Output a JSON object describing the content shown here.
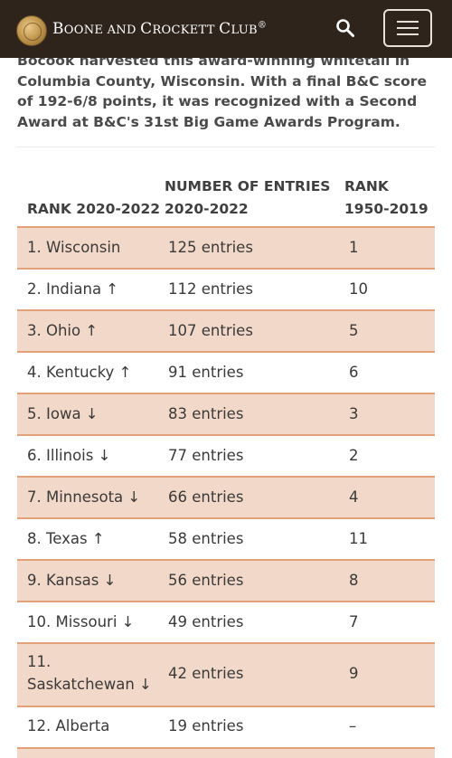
{
  "header": {
    "brand_first": "B",
    "brand_rest_1": "OONE AND ",
    "brand_c": "C",
    "brand_rest_2": "ROCKETT ",
    "brand_c2": "C",
    "brand_rest_3": "LUB",
    "brand_mark": "®",
    "search_icon": "search-icon",
    "menu_icon": "hamburger-menu-icon",
    "background": "#2e241c"
  },
  "intro": {
    "text": "Bocook harvested this award-winning whitetail in Columbia County, Wisconsin. With a final B&C score of 192-6/8 points, it was recognized with a Second Award at B&C's 31st Big Game Awards Program."
  },
  "table": {
    "headers": [
      {
        "line1": "",
        "line2": "RANK 2020-2022"
      },
      {
        "line1": "NUMBER OF ENTRIES",
        "line2": "2020-2022"
      },
      {
        "line1": "RANK",
        "line2": "1950-2019"
      }
    ],
    "accent_color": "#e3a178",
    "shade_color": "#f2d8c9",
    "rows": [
      {
        "state": "1. Wisconsin",
        "entries": "125 entries",
        "rank_prev": "1"
      },
      {
        "state": "2. Indiana ↑",
        "entries": "112 entries",
        "rank_prev": "10"
      },
      {
        "state": "3. Ohio ↑",
        "entries": "107 entries",
        "rank_prev": "5"
      },
      {
        "state": "4.  Kentucky ↑",
        "entries": "91 entries",
        "rank_prev": "6"
      },
      {
        "state": "5. Iowa ↓",
        "entries": "83 entries",
        "rank_prev": "3"
      },
      {
        "state": "6. Illinois ↓",
        "entries": "77 entries",
        "rank_prev": "2"
      },
      {
        "state": "7. Minnesota ↓",
        "entries": "66 entries",
        "rank_prev": "4"
      },
      {
        "state": "8. Texas ↑",
        "entries": "58 entries",
        "rank_prev": "11"
      },
      {
        "state": "9. Kansas ↓",
        "entries": "56 entries",
        "rank_prev": "8"
      },
      {
        "state": "10. Missouri ↓",
        "entries": "49 entries",
        "rank_prev": "7"
      },
      {
        "state": "11.",
        "state_line2": "Saskatchewan ↓",
        "entries": "42 entries",
        "rank_prev": "9"
      },
      {
        "state": "12. Alberta",
        "entries": "19 entries",
        "rank_prev": "–"
      }
    ]
  }
}
